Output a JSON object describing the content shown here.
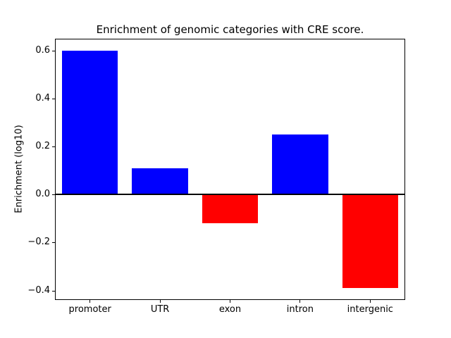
{
  "chart_data": {
    "type": "bar",
    "title": "Enrichment of genomic categories with CRE score.",
    "ylabel": "Enrichment (log10)",
    "xlabel": "",
    "categories": [
      "promoter",
      "UTR",
      "exon",
      "intron",
      "intergenic"
    ],
    "values": [
      0.6,
      0.11,
      -0.12,
      0.25,
      -0.39
    ],
    "bar_colors": [
      "#0000ff",
      "#0000ff",
      "#ff0000",
      "#0000ff",
      "#ff0000"
    ],
    "positive_color": "#0000ff",
    "negative_color": "#ff0000",
    "ylim": [
      -0.4395,
      0.6495
    ],
    "yticks": {
      "values": [
        0.6,
        0.4,
        0.2,
        0.0,
        -0.2,
        -0.4
      ],
      "labels": [
        "0.6",
        "0.4",
        "0.2",
        "0.0",
        "−0.2",
        "−0.4"
      ]
    },
    "bar_width_fraction": 0.8,
    "zero_line": {
      "value": 0,
      "color": "#000000"
    },
    "grid": false,
    "legend": null,
    "background": "#ffffff"
  }
}
